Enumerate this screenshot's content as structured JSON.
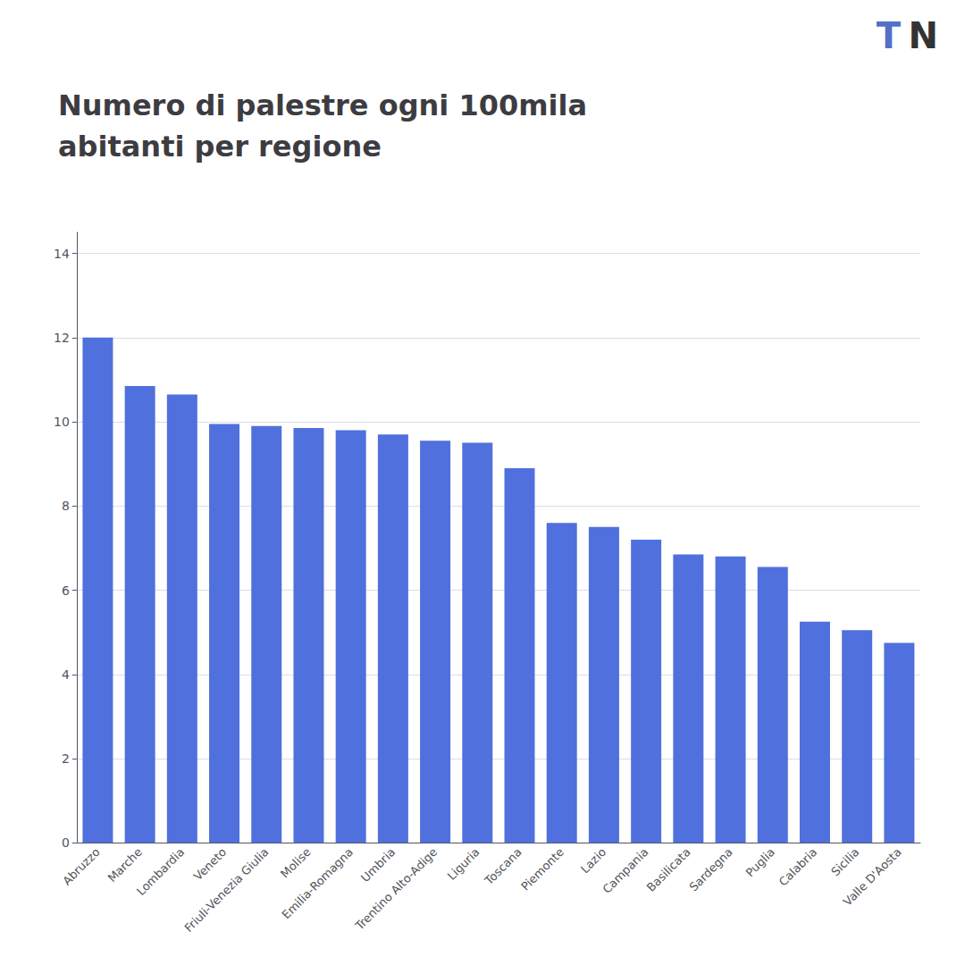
{
  "chart_data": {
    "type": "bar",
    "title": "Numero di palestre ogni 100mila\nabitanti per regione",
    "categories": [
      "Abruzzo",
      "Marche",
      "Lombardia",
      "Veneto",
      "Friuli-Venezia Giulia",
      "Molise",
      "Emilia-Romagna",
      "Umbria",
      "Trentino Alto-Adige",
      "Liguria",
      "Toscana",
      "Piemonte",
      "Lazio",
      "Campania",
      "Basilicata",
      "Sardegna",
      "Puglia",
      "Calabria",
      "Sicilia",
      "Valle D'Aosta"
    ],
    "values": [
      12.0,
      10.85,
      10.65,
      9.95,
      9.9,
      9.85,
      9.8,
      9.7,
      9.55,
      9.5,
      8.9,
      7.6,
      7.5,
      7.2,
      6.85,
      6.8,
      6.55,
      5.25,
      5.05,
      4.75
    ],
    "ylim": [
      0,
      14.5
    ],
    "yticks": [
      0,
      2,
      4,
      6,
      8,
      10,
      12,
      14
    ],
    "grid": true,
    "annotations": [
      "T",
      "N"
    ]
  }
}
